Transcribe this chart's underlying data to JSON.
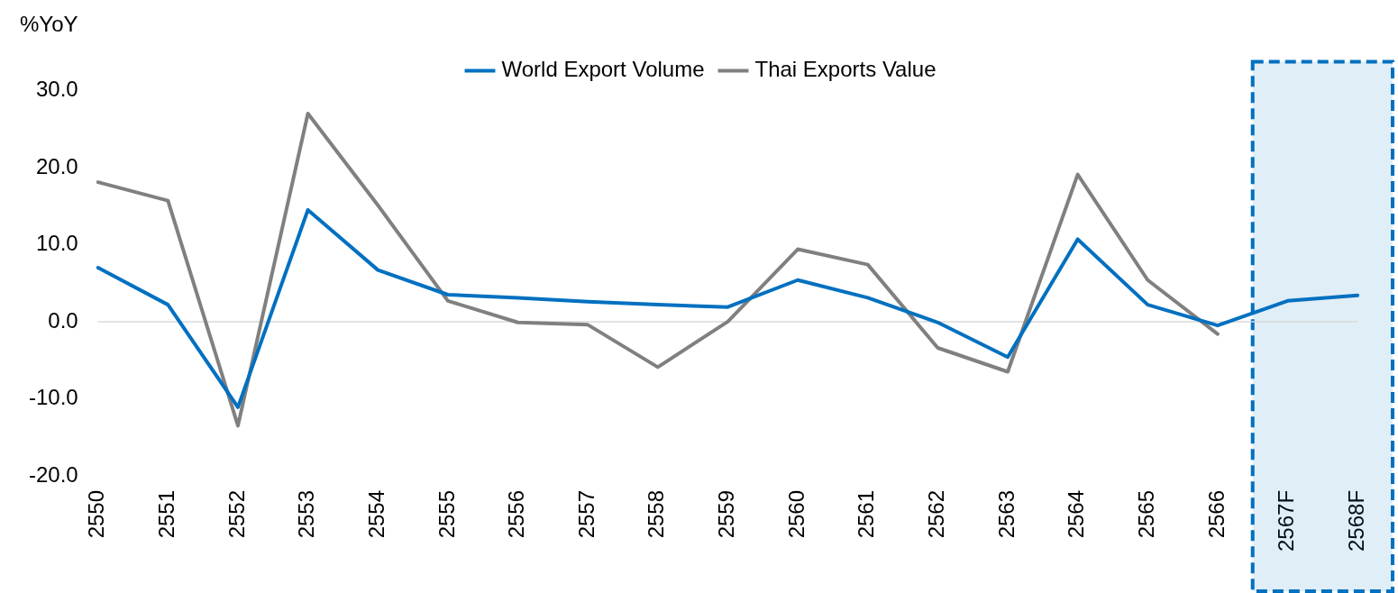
{
  "chart_data": {
    "type": "line",
    "ylabel": "%YoY",
    "categories": [
      "2550",
      "2551",
      "2552",
      "2553",
      "2554",
      "2555",
      "2556",
      "2557",
      "2558",
      "2559",
      "2560",
      "2561",
      "2562",
      "2563",
      "2564",
      "2565",
      "2566",
      "2567F",
      "2568F"
    ],
    "series": [
      {
        "name": "World Export Volume",
        "color": "#0070c0",
        "values": [
          7.0,
          2.2,
          -11.1,
          14.5,
          6.7,
          3.5,
          3.1,
          2.6,
          2.2,
          1.9,
          5.4,
          3.1,
          -0.1,
          -4.6,
          10.7,
          2.2,
          -0.5,
          2.7,
          3.4
        ]
      },
      {
        "name": "Thai Exports Value",
        "color": "#808080",
        "values": [
          18.1,
          15.7,
          -13.5,
          27.0,
          15.1,
          2.7,
          -0.1,
          -0.4,
          -5.9,
          0.0,
          9.4,
          7.4,
          -3.4,
          -6.5,
          19.1,
          5.4,
          -1.6,
          null,
          null
        ]
      }
    ],
    "ylim": [
      -20,
      30
    ],
    "yticks": [
      {
        "value": -20,
        "label": "-20.0"
      },
      {
        "value": -10,
        "label": "-10.0"
      },
      {
        "value": 0,
        "label": "0.0"
      },
      {
        "value": 10,
        "label": "10.0"
      },
      {
        "value": 20,
        "label": "20.0"
      },
      {
        "value": 30,
        "label": "30.0"
      }
    ],
    "legend": "top",
    "marker": "none",
    "ref_lines": [
      {
        "axis": "y",
        "value": 0,
        "color": "#d9d9d9"
      }
    ],
    "bands": [
      {
        "axis": "x",
        "from": "2567F",
        "to": "2568F",
        "color": "#0070c0"
      }
    ]
  }
}
